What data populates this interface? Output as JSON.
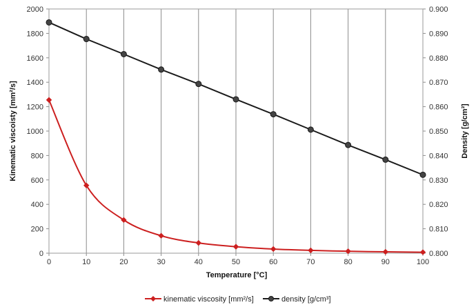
{
  "chart_data": {
    "type": "line",
    "xlabel": "Temperature  [°C]",
    "ylabel": "Kinematic viscoisty  [mm²/s]",
    "y2label": "Density  [g/cm³]",
    "x": [
      0,
      10,
      20,
      30,
      40,
      50,
      60,
      70,
      80,
      90,
      100
    ],
    "xlim": [
      0,
      100
    ],
    "xticks": [
      "0",
      "10",
      "20",
      "30",
      "40",
      "50",
      "60",
      "70",
      "80",
      "90",
      "100"
    ],
    "ylim": [
      0,
      2000
    ],
    "yticks": [
      "0",
      "200",
      "400",
      "600",
      "800",
      "1000",
      "1200",
      "1400",
      "1600",
      "1800",
      "2000"
    ],
    "y2lim": [
      0.8,
      0.9
    ],
    "y2ticks": [
      "0.800",
      "0.810",
      "0.820",
      "0.830",
      "0.840",
      "0.850",
      "0.860",
      "0.870",
      "0.880",
      "0.890",
      "0.900"
    ],
    "grid": "vertical",
    "legend": "bottom",
    "series": [
      {
        "name": "kinematic viscosity [mm²/s]",
        "axis": "left",
        "color": "#cc1f1f",
        "marker": "diamond",
        "smooth": true,
        "values": [
          1255,
          555,
          272,
          143,
          84,
          53,
          34,
          23,
          16,
          11,
          8
        ]
      },
      {
        "name": "density [g/cm³]",
        "axis": "right",
        "color": "#1a1a1a",
        "marker": "circle",
        "smooth": false,
        "values": [
          0.8945,
          0.8877,
          0.8815,
          0.8752,
          0.8693,
          0.863,
          0.8569,
          0.8506,
          0.8443,
          0.8383,
          0.8321
        ]
      }
    ]
  }
}
